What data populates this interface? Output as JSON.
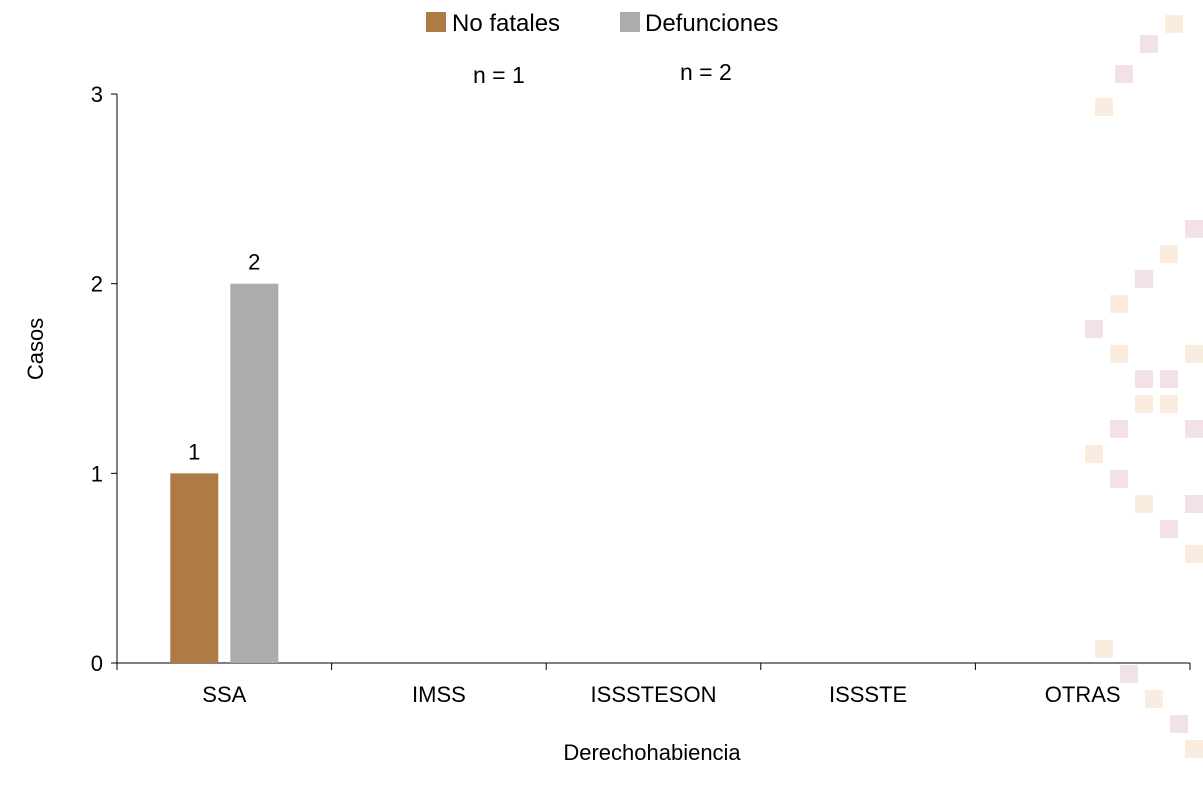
{
  "chart_data": {
    "type": "bar",
    "categories": [
      "SSA",
      "IMSS",
      "ISSSTESON",
      "ISSSTE",
      "OTRAS"
    ],
    "series": [
      {
        "name": "No fatales",
        "color": "#AE7B45",
        "values": [
          1,
          0,
          0,
          0,
          0
        ]
      },
      {
        "name": "Defunciones",
        "color": "#AEABAB",
        "values": [
          2,
          0,
          0,
          0,
          0
        ]
      }
    ],
    "data_labels": [
      [
        "1"
      ],
      [
        "2"
      ]
    ],
    "annotations": [
      "n = 1",
      "n = 2"
    ],
    "xlabel": "Derechohabiencia",
    "ylabel": "Casos",
    "ylim": [
      0,
      3
    ],
    "yticks": [
      "0",
      "1",
      "2",
      "3"
    ],
    "grid": false,
    "legend_position": "top-center"
  },
  "decoration": {
    "watermark": "decorative-pattern",
    "colors": [
      "#E8C9D2",
      "#F6DDC4"
    ]
  }
}
